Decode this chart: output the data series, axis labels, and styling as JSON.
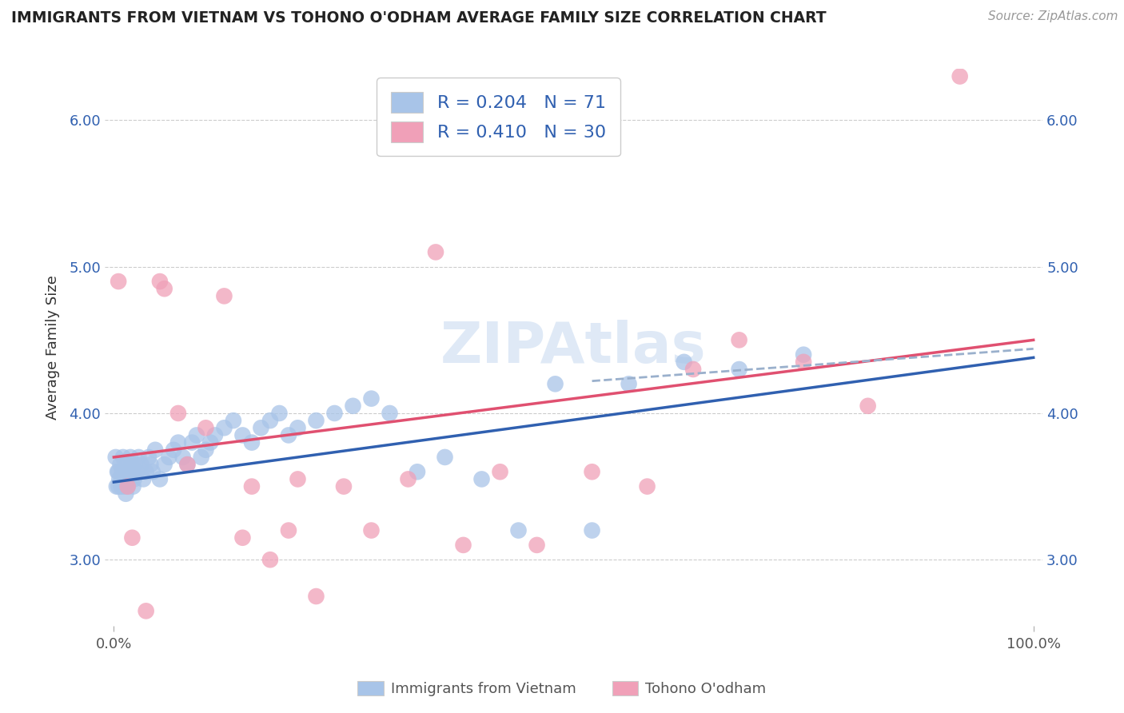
{
  "title": "IMMIGRANTS FROM VIETNAM VS TOHONO O'ODHAM AVERAGE FAMILY SIZE CORRELATION CHART",
  "source": "Source: ZipAtlas.com",
  "ylabel": "Average Family Size",
  "xlim": [
    -1,
    101
  ],
  "ylim": [
    2.55,
    6.35
  ],
  "yticks": [
    3.0,
    4.0,
    5.0,
    6.0
  ],
  "xtick_labels": [
    "0.0%",
    "100.0%"
  ],
  "blue_color": "#a8c4e8",
  "pink_color": "#f0a0b8",
  "blue_line_color": "#3060b0",
  "pink_line_color": "#e05070",
  "dashed_line_color": "#9ab0cc",
  "R_blue": 0.204,
  "N_blue": 71,
  "R_pink": 0.41,
  "N_pink": 30,
  "legend_label_blue": "Immigrants from Vietnam",
  "legend_label_pink": "Tohono O'odham",
  "watermark": "ZIPAtlas",
  "blue_scatter_x": [
    0.2,
    0.3,
    0.4,
    0.5,
    0.5,
    0.6,
    0.7,
    0.8,
    0.9,
    1.0,
    1.0,
    1.1,
    1.2,
    1.3,
    1.4,
    1.5,
    1.5,
    1.6,
    1.7,
    1.8,
    1.9,
    2.0,
    2.1,
    2.2,
    2.3,
    2.5,
    2.7,
    3.0,
    3.2,
    3.5,
    3.8,
    4.0,
    4.2,
    4.5,
    5.0,
    5.5,
    6.0,
    6.5,
    7.0,
    7.5,
    8.0,
    8.5,
    9.0,
    9.5,
    10.0,
    10.5,
    11.0,
    12.0,
    13.0,
    14.0,
    15.0,
    16.0,
    17.0,
    18.0,
    19.0,
    20.0,
    22.0,
    24.0,
    26.0,
    28.0,
    30.0,
    33.0,
    36.0,
    40.0,
    44.0,
    48.0,
    52.0,
    56.0,
    62.0,
    68.0,
    75.0
  ],
  "blue_scatter_y": [
    3.7,
    3.5,
    3.6,
    3.5,
    3.6,
    3.55,
    3.65,
    3.5,
    3.6,
    3.55,
    3.7,
    3.5,
    3.6,
    3.45,
    3.55,
    3.65,
    3.5,
    3.6,
    3.55,
    3.7,
    3.65,
    3.6,
    3.5,
    3.55,
    3.65,
    3.6,
    3.7,
    3.65,
    3.55,
    3.6,
    3.7,
    3.65,
    3.6,
    3.75,
    3.55,
    3.65,
    3.7,
    3.75,
    3.8,
    3.7,
    3.65,
    3.8,
    3.85,
    3.7,
    3.75,
    3.8,
    3.85,
    3.9,
    3.95,
    3.85,
    3.8,
    3.9,
    3.95,
    4.0,
    3.85,
    3.9,
    3.95,
    4.0,
    4.05,
    4.1,
    4.0,
    3.6,
    3.7,
    3.55,
    3.2,
    4.2,
    3.2,
    4.2,
    4.35,
    4.3,
    4.4
  ],
  "pink_scatter_x": [
    0.5,
    1.5,
    2.0,
    3.5,
    5.0,
    5.5,
    7.0,
    8.0,
    10.0,
    12.0,
    14.0,
    15.0,
    17.0,
    19.0,
    20.0,
    22.0,
    25.0,
    28.0,
    32.0,
    35.0,
    38.0,
    42.0,
    46.0,
    52.0,
    58.0,
    63.0,
    68.0,
    75.0,
    82.0,
    92.0
  ],
  "pink_scatter_y": [
    4.9,
    3.5,
    3.15,
    2.65,
    4.9,
    4.85,
    4.0,
    3.65,
    3.9,
    4.8,
    3.15,
    3.5,
    3.0,
    3.2,
    3.55,
    2.75,
    3.5,
    3.2,
    3.55,
    5.1,
    3.1,
    3.6,
    3.1,
    3.6,
    3.5,
    4.3,
    4.5,
    4.35,
    4.05,
    6.3
  ],
  "blue_line_y_start": 3.53,
  "blue_line_y_end": 4.38,
  "pink_line_y_start": 3.7,
  "pink_line_y_end": 4.5,
  "dashed_line_x_start": 52,
  "dashed_line_x_end": 100,
  "dashed_line_y_start": 4.22,
  "dashed_line_y_end": 4.44
}
